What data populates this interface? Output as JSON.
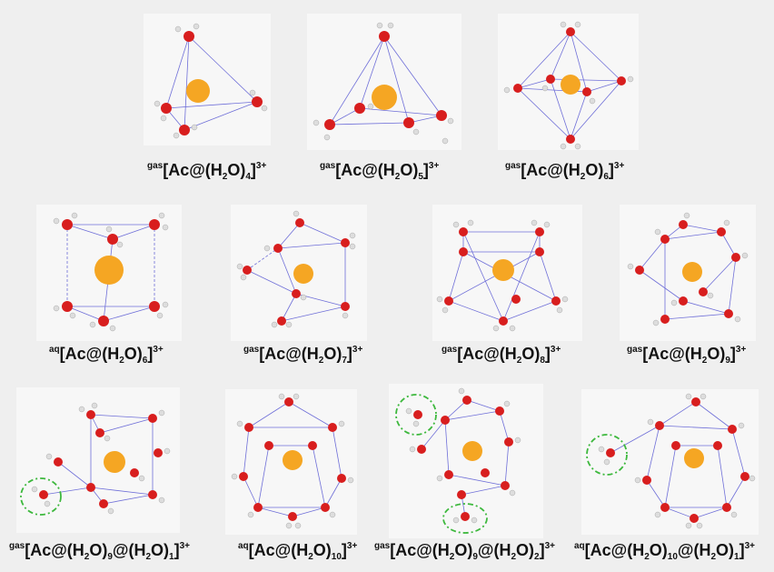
{
  "labels": [
    {
      "id": "l1",
      "prefix": "gas",
      "parts": [
        "[Ac@(H",
        "2",
        "O)",
        "4",
        "]",
        "3+"
      ]
    },
    {
      "id": "l2",
      "prefix": "gas",
      "parts": [
        "[Ac@(H",
        "2",
        "O)",
        "5",
        "]",
        "3+"
      ]
    },
    {
      "id": "l3",
      "prefix": "gas",
      "parts": [
        "[Ac@(H",
        "2",
        "O)",
        "6",
        "]",
        "3+"
      ]
    },
    {
      "id": "l4",
      "prefix": "aq",
      "parts": [
        "[Ac@(H",
        "2",
        "O)",
        "6",
        "]",
        "3+"
      ]
    },
    {
      "id": "l5",
      "prefix": "gas",
      "parts": [
        "[Ac@(H",
        "2",
        "O)",
        "7",
        "]",
        "3+"
      ]
    },
    {
      "id": "l6",
      "prefix": "gas",
      "parts": [
        "[Ac@(H",
        "2",
        "O)",
        "8",
        "]",
        "3+"
      ]
    },
    {
      "id": "l7",
      "prefix": "gas",
      "parts": [
        "[Ac@(H",
        "2",
        "O)",
        "9",
        "]",
        "3+"
      ]
    },
    {
      "id": "l8",
      "prefix": "gas",
      "text": "[Ac@(H<sub>2</sub>O)<sub>9</sub>@(H<sub>2</sub>O)<sub>1</sub>]<sup>3+</sup>"
    },
    {
      "id": "l9",
      "prefix": "aq",
      "text": "[Ac@(H<sub>2</sub>O)<sub>10</sub>]<sup>3+</sup>"
    },
    {
      "id": "l10",
      "prefix": "gas",
      "text": "[Ac@(H<sub>2</sub>O)<sub>9</sub>@(H<sub>2</sub>O)<sub>2</sub>]<sup>3+</sup>"
    },
    {
      "id": "l11",
      "prefix": "aq",
      "text": "[Ac@(H<sub>2</sub>O)<sub>10</sub>@(H<sub>2</sub>O)<sub>1</sub>]<sup>3+</sup>"
    }
  ],
  "colors": {
    "actinium": "#f5a623",
    "oxygen": "#d81e1e",
    "hydrogen": "#e6e6e6",
    "bond": "#6f6fd8",
    "highlight": "#3db83d"
  }
}
